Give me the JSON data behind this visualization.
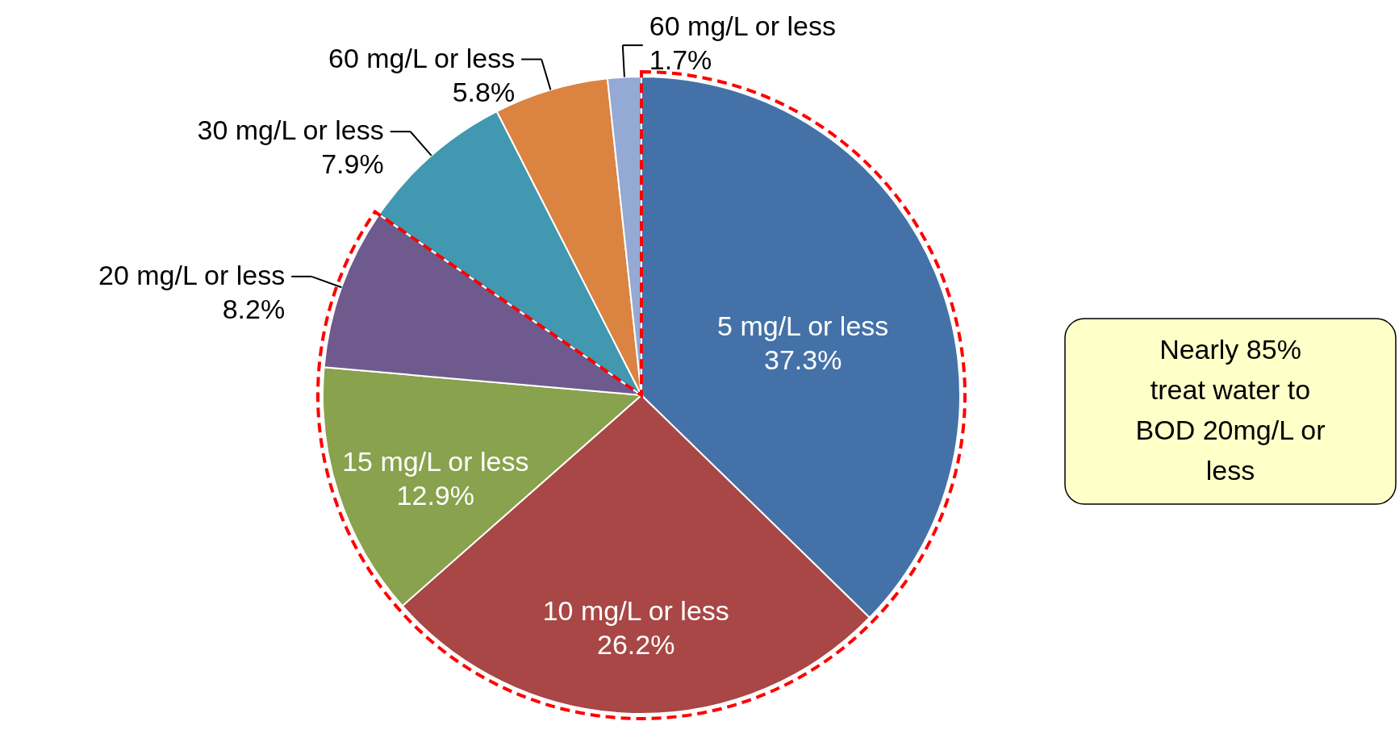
{
  "chart_data": {
    "type": "pie",
    "categories": [
      "5 mg/L or less",
      "10 mg/L or less",
      "15 mg/L or less",
      "20 mg/L or less",
      "30 mg/L or less",
      "60 mg/L or less",
      "60 mg/L or less"
    ],
    "values": [
      37.3,
      26.2,
      12.9,
      8.2,
      7.9,
      5.8,
      1.7
    ],
    "colors": [
      "#4472a8",
      "#a84745",
      "#88a24d",
      "#6f5a8e",
      "#4198b0",
      "#db8340",
      "#94a9d3"
    ],
    "value_labels": [
      "37.3%",
      "26.2%",
      "12.9%",
      "8.2%",
      "7.9%",
      "5.8%",
      "1.7%"
    ],
    "annotations": [
      "Nearly 85% treat water to BOD 20mg/L or less"
    ]
  }
}
